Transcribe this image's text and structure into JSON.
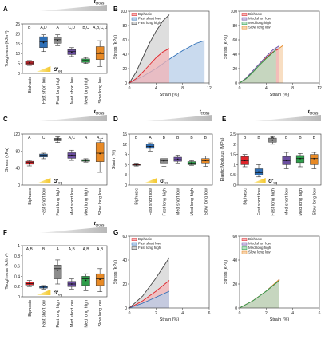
{
  "figure": {
    "panel_letters": [
      "A",
      "B",
      "C",
      "D",
      "E",
      "F",
      "G"
    ],
    "gradient_label_main": "t",
    "gradient_label_sub": "cross",
    "geq_label_main": "G'",
    "geq_label_sub": "eq"
  },
  "chart_data": [
    {
      "panel": "A",
      "type": "box",
      "ylabel": "Toughness (kJ/m³)",
      "ylim": [
        0,
        25
      ],
      "yticks": [
        0,
        5,
        10,
        15,
        20,
        25
      ],
      "categories": [
        "Biphasic",
        "Fast short low",
        "Fast long high",
        "Med short low",
        "Med long high",
        "Slow long low"
      ],
      "letters": [
        "B",
        "A,D",
        "A",
        "C,D",
        "B,C",
        "A,B,C,D"
      ],
      "colors": [
        "#e0242a",
        "#2e6fb7",
        "#8c8c8c",
        "#6b4ea0",
        "#2e9e4a",
        "#e88a26"
      ],
      "boxes": [
        {
          "min": 4.0,
          "q1": 4.6,
          "median": 5.2,
          "q3": 6.0,
          "max": 6.5,
          "mean": 5.3
        },
        {
          "min": 11.0,
          "q1": 13.0,
          "median": 16.0,
          "q3": 18.5,
          "max": 19.5,
          "mean": 15.5
        },
        {
          "min": 14.0,
          "q1": 15.2,
          "median": 17.0,
          "q3": 18.2,
          "max": 19.5,
          "mean": 16.8
        },
        {
          "min": 8.5,
          "q1": 9.5,
          "median": 11.0,
          "q3": 12.0,
          "max": 13.0,
          "mean": 10.8
        },
        {
          "min": 5.0,
          "q1": 5.5,
          "median": 6.5,
          "q3": 7.3,
          "max": 8.0,
          "mean": 6.4
        },
        {
          "min": 3.5,
          "q1": 7.0,
          "median": 10.0,
          "q3": 13.5,
          "max": 16.5,
          "mean": 10.3
        }
      ]
    },
    {
      "panel": "B",
      "type": "area",
      "xlabel": "Strain (%)",
      "ylabel": "Stress (kPa)",
      "xlim": [
        0,
        12
      ],
      "ylim": [
        0,
        100
      ],
      "xticks": [
        0,
        4,
        8,
        12
      ],
      "yticks": [
        0,
        20,
        40,
        60,
        80,
        100
      ],
      "series": [
        {
          "name": "Biphasic",
          "color": "#e0242a",
          "fill": "#f4b6b8",
          "x": [
            0,
            1,
            2,
            3,
            4,
            5,
            6
          ],
          "y": [
            0,
            6,
            15,
            25,
            35,
            43,
            48
          ]
        },
        {
          "name": "Fast short low",
          "color": "#2e6fb7",
          "fill": "#b7cde8",
          "x": [
            0,
            2,
            4,
            6,
            8,
            10,
            11.3
          ],
          "y": [
            0,
            9,
            20,
            33,
            45,
            55,
            59
          ]
        },
        {
          "name": "Fast long high",
          "color": "#444444",
          "fill": "#d3d3d3",
          "x": [
            0,
            1,
            2,
            3,
            4,
            5,
            6
          ],
          "y": [
            0,
            15,
            35,
            55,
            72,
            86,
            95
          ]
        }
      ]
    },
    {
      "panel": "B2",
      "type": "area",
      "xlabel": "Strain (%)",
      "ylabel": "Stress (kPa)",
      "xlim": [
        0,
        12
      ],
      "ylim": [
        0,
        100
      ],
      "xticks": [
        0,
        4,
        8,
        12
      ],
      "yticks": [
        0,
        20,
        40,
        60,
        80,
        100
      ],
      "series": [
        {
          "name": "Biphasic",
          "color": "#e0242a",
          "fill": "#f4b6b8",
          "x": [
            0,
            1,
            2,
            3,
            4,
            5,
            6
          ],
          "y": [
            0,
            6,
            15,
            25,
            35,
            43,
            48
          ]
        },
        {
          "name": "Med short low",
          "color": "#6b4ea0",
          "fill": "#c9bce0",
          "x": [
            0,
            1,
            2,
            3,
            4,
            5,
            6
          ],
          "y": [
            0,
            7,
            17,
            27,
            37,
            46,
            52
          ]
        },
        {
          "name": "Med long high",
          "color": "#2e9e4a",
          "fill": "#b7dfc2",
          "x": [
            0,
            1,
            2,
            3,
            4,
            5,
            5.5
          ],
          "y": [
            0,
            6,
            15,
            25,
            34,
            42,
            47
          ]
        },
        {
          "name": "Slow long low",
          "color": "#e88a26",
          "fill": "#f6d3ad",
          "x": [
            0,
            1,
            2,
            3,
            4,
            5,
            6.5
          ],
          "y": [
            0,
            6,
            14,
            23,
            33,
            42,
            52
          ]
        }
      ]
    },
    {
      "panel": "C",
      "type": "box",
      "ylabel": "Stress (kPa)",
      "ylim": [
        0,
        120
      ],
      "yticks": [
        0,
        40,
        80,
        120
      ],
      "categories": [
        "Biphasic",
        "Fast short low",
        "Fast long high",
        "Med short low",
        "Med long high",
        "Slow long low"
      ],
      "letters": [
        "A",
        "C",
        "B",
        "A,C",
        "A",
        "A,C"
      ],
      "colors": [
        "#e0242a",
        "#2e6fb7",
        "#8c8c8c",
        "#6b4ea0",
        "#2e9e4a",
        "#e88a26"
      ],
      "boxes": [
        {
          "min": 45,
          "q1": 49,
          "median": 53,
          "q3": 56,
          "max": 58,
          "mean": 52
        },
        {
          "min": 62,
          "q1": 66,
          "median": 70,
          "q3": 73,
          "max": 75,
          "mean": 69
        },
        {
          "min": 100,
          "q1": 104,
          "median": 107,
          "q3": 110,
          "max": 113,
          "mean": 107
        },
        {
          "min": 58,
          "q1": 63,
          "median": 70,
          "q3": 76,
          "max": 82,
          "mean": 70
        },
        {
          "min": 54,
          "q1": 56,
          "median": 58,
          "q3": 60,
          "max": 62,
          "mean": 58
        },
        {
          "min": 30,
          "q1": 55,
          "median": 75,
          "q3": 100,
          "max": 105,
          "mean": 74
        }
      ]
    },
    {
      "panel": "D",
      "type": "box",
      "ylabel": "Strain (%)",
      "ylim": [
        0,
        15
      ],
      "yticks": [
        0,
        3,
        6,
        9,
        12,
        15
      ],
      "categories": [
        "Biphasic",
        "Fast short low",
        "Fast long high",
        "Med short low",
        "Med long high",
        "Slow long low"
      ],
      "letters": [
        "B",
        "A",
        "B",
        "B",
        "B",
        "B"
      ],
      "colors": [
        "#e0242a",
        "#2e6fb7",
        "#8c8c8c",
        "#6b4ea0",
        "#2e9e4a",
        "#e88a26"
      ],
      "boxes": [
        {
          "min": 5.6,
          "q1": 5.8,
          "median": 6.0,
          "q3": 6.2,
          "max": 6.4,
          "mean": 6.0
        },
        {
          "min": 10.0,
          "q1": 10.8,
          "median": 11.4,
          "q3": 12.0,
          "max": 12.4,
          "mean": 11.3
        },
        {
          "min": 5.5,
          "q1": 6.5,
          "median": 7.2,
          "q3": 7.8,
          "max": 8.5,
          "mean": 7.1
        },
        {
          "min": 6.5,
          "q1": 7.0,
          "median": 7.5,
          "q3": 8.2,
          "max": 8.8,
          "mean": 7.6
        },
        {
          "min": 5.8,
          "q1": 6.0,
          "median": 6.4,
          "q3": 6.9,
          "max": 7.2,
          "mean": 6.5
        },
        {
          "min": 5.5,
          "q1": 6.5,
          "median": 7.2,
          "q3": 7.8,
          "max": 8.5,
          "mean": 7.2
        }
      ]
    },
    {
      "panel": "E",
      "type": "box",
      "ylabel": "Elastic Modulus (MPa)",
      "ylim": [
        0,
        2.5
      ],
      "yticks": [
        0,
        0.5,
        1.0,
        1.5,
        2.0,
        2.5
      ],
      "categories": [
        "Biphasic",
        "Fast short low",
        "Fast long high",
        "Med short low",
        "Med long high",
        "Slow long low"
      ],
      "letters": [
        "B",
        "B",
        "A",
        "B",
        "B",
        "B"
      ],
      "colors": [
        "#e0242a",
        "#2e6fb7",
        "#8c8c8c",
        "#6b4ea0",
        "#2e9e4a",
        "#e88a26"
      ],
      "boxes": [
        {
          "min": 0.9,
          "q1": 1.0,
          "median": 1.2,
          "q3": 1.4,
          "max": 1.5,
          "mean": 1.2
        },
        {
          "min": 0.4,
          "q1": 0.5,
          "median": 0.6,
          "q3": 0.8,
          "max": 1.0,
          "mean": 0.65
        },
        {
          "min": 2.0,
          "q1": 2.1,
          "median": 2.2,
          "q3": 2.3,
          "max": 2.35,
          "mean": 2.2
        },
        {
          "min": 0.8,
          "q1": 1.0,
          "median": 1.2,
          "q3": 1.4,
          "max": 1.6,
          "mean": 1.2
        },
        {
          "min": 0.9,
          "q1": 1.1,
          "median": 1.3,
          "q3": 1.45,
          "max": 1.55,
          "mean": 1.3
        },
        {
          "min": 0.8,
          "q1": 1.0,
          "median": 1.3,
          "q3": 1.5,
          "max": 1.6,
          "mean": 1.3
        }
      ]
    },
    {
      "panel": "F",
      "type": "box",
      "ylabel": "Toughness (kJ/m³)",
      "ylim": [
        0,
        1
      ],
      "yticks": [
        0,
        0.2,
        0.4,
        0.6,
        0.8,
        1.0
      ],
      "categories": [
        "Biphasic",
        "Fast short low",
        "Fast long high",
        "Med short low",
        "Med long high",
        "Slow long low"
      ],
      "letters": [
        "A,B",
        "B",
        "A",
        "A,B",
        "A,B",
        "A,B"
      ],
      "colors": [
        "#e0242a",
        "#2e6fb7",
        "#8c8c8c",
        "#6b4ea0",
        "#2e9e4a",
        "#e88a26"
      ],
      "boxes": [
        {
          "min": 0.2,
          "q1": 0.23,
          "median": 0.26,
          "q3": 0.29,
          "max": 0.32,
          "mean": 0.26
        },
        {
          "min": 0.15,
          "q1": 0.17,
          "median": 0.19,
          "q3": 0.21,
          "max": 0.22,
          "mean": 0.19
        },
        {
          "min": 0.25,
          "q1": 0.35,
          "median": 0.55,
          "q3": 0.62,
          "max": 0.72,
          "mean": 0.52
        },
        {
          "min": 0.15,
          "q1": 0.2,
          "median": 0.25,
          "q3": 0.3,
          "max": 0.35,
          "mean": 0.25
        },
        {
          "min": 0.12,
          "q1": 0.22,
          "median": 0.35,
          "q3": 0.4,
          "max": 0.45,
          "mean": 0.32
        },
        {
          "min": 0.1,
          "q1": 0.22,
          "median": 0.35,
          "q3": 0.45,
          "max": 0.55,
          "mean": 0.34
        }
      ]
    },
    {
      "panel": "G",
      "type": "area",
      "xlabel": "Strain (%)",
      "ylabel": "Stress (kPa)",
      "xlim": [
        0,
        6
      ],
      "ylim": [
        0,
        60
      ],
      "xticks": [
        0,
        2,
        4,
        6
      ],
      "yticks": [
        0,
        20,
        40,
        60
      ],
      "series": [
        {
          "name": "Biphasic",
          "color": "#e0242a",
          "fill": "#f4b6b8",
          "x": [
            0,
            1,
            2,
            3
          ],
          "y": [
            0,
            6,
            14,
            23
          ]
        },
        {
          "name": "Fast short low",
          "color": "#2e6fb7",
          "fill": "#b7cde8",
          "x": [
            0,
            1,
            2,
            3
          ],
          "y": [
            0,
            4,
            9,
            14
          ]
        },
        {
          "name": "Fast long high",
          "color": "#444444",
          "fill": "#d3d3d3",
          "x": [
            0,
            1,
            2,
            3
          ],
          "y": [
            0,
            10,
            25,
            42
          ]
        }
      ]
    },
    {
      "panel": "G2",
      "type": "area",
      "xlabel": "Strain (%)",
      "ylabel": "Stress (kPa)",
      "xlim": [
        0,
        6
      ],
      "ylim": [
        0,
        60
      ],
      "xticks": [
        0,
        2,
        4,
        6
      ],
      "yticks": [
        0,
        20,
        40,
        60
      ],
      "series": [
        {
          "name": "Biphasic",
          "color": "#e0242a",
          "fill": "#f4b6b8",
          "x": [
            0,
            1,
            2,
            3
          ],
          "y": [
            0,
            6,
            14,
            23
          ]
        },
        {
          "name": "Med short low",
          "color": "#6b4ea0",
          "fill": "#c9bce0",
          "x": [
            0,
            1,
            2,
            3
          ],
          "y": [
            0,
            6,
            14,
            24
          ]
        },
        {
          "name": "Med long high",
          "color": "#2e9e4a",
          "fill": "#b7dfc2",
          "x": [
            0,
            1,
            2,
            3
          ],
          "y": [
            0,
            6,
            14,
            23
          ]
        },
        {
          "name": "Slow long low",
          "color": "#e88a26",
          "fill": "#f6d3ad",
          "x": [
            0,
            1,
            2,
            3
          ],
          "y": [
            0,
            6,
            14,
            24
          ]
        }
      ]
    }
  ]
}
